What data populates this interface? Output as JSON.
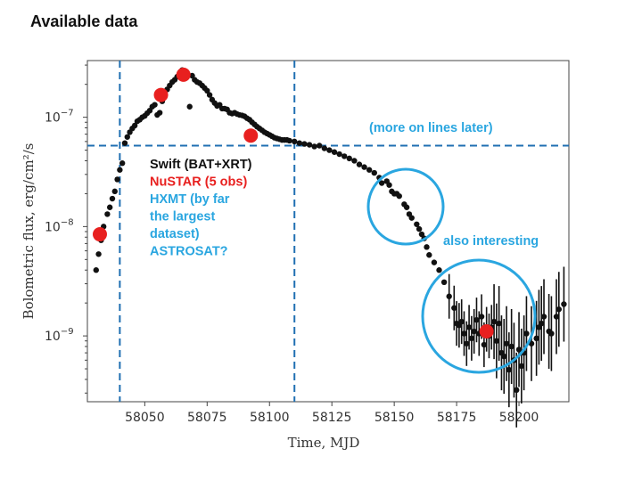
{
  "slide_title": "Available data",
  "chart_data": {
    "type": "scatter",
    "title": "",
    "xlabel": "Time, MJD",
    "ylabel": "Bolometric flux, erg/cm²/s",
    "xlim": [
      58027,
      58220
    ],
    "ylim": [
      2.5e-10,
      3.3e-07
    ],
    "yscale": "log",
    "x_ticks": [
      58050,
      58075,
      58100,
      58125,
      58150,
      58175,
      58200
    ],
    "y_ticks": [
      {
        "value": 1e-07,
        "mantissa": "10",
        "exp": "−7"
      },
      {
        "value": 1e-08,
        "mantissa": "10",
        "exp": "−8"
      },
      {
        "value": 1e-09,
        "mantissa": "10",
        "exp": "−9"
      }
    ],
    "grid": false,
    "colors": {
      "points": "#111111",
      "nustar": "#e8201f",
      "lines": "#1f6fb2",
      "annotation": "#2aa6e0"
    },
    "vertical_lines": [
      58040,
      58110
    ],
    "horizontal_line": 5.5e-08,
    "lightcurve": [
      [
        58030.5,
        4e-09
      ],
      [
        58031.5,
        5.6e-09
      ],
      [
        58032.5,
        7.5e-09
      ],
      [
        58033.5,
        1e-08
      ],
      [
        58035,
        1.3e-08
      ],
      [
        58036,
        1.5e-08
      ],
      [
        58037,
        1.8e-08
      ],
      [
        58038,
        2.1e-08
      ],
      [
        58039,
        2.7e-08
      ],
      [
        58040,
        3.3e-08
      ],
      [
        58041,
        3.8e-08
      ],
      [
        58042,
        5.8e-08
      ],
      [
        58043,
        6.6e-08
      ],
      [
        58044,
        7.3e-08
      ],
      [
        58045,
        7.9e-08
      ],
      [
        58046,
        8.4e-08
      ],
      [
        58047,
        9.2e-08
      ],
      [
        58048,
        9.5e-08
      ],
      [
        58049,
        1e-07
      ],
      [
        58050,
        1.03e-07
      ],
      [
        58051,
        1.09e-07
      ],
      [
        58052,
        1.15e-07
      ],
      [
        58053,
        1.25e-07
      ],
      [
        58054,
        1.3e-07
      ],
      [
        58055,
        1.05e-07
      ],
      [
        58056,
        1.1e-07
      ],
      [
        58057,
        1.4e-07
      ],
      [
        58058,
        1.55e-07
      ],
      [
        58059,
        1.8e-07
      ],
      [
        58060,
        1.95e-07
      ],
      [
        58061,
        2.1e-07
      ],
      [
        58062,
        2.2e-07
      ],
      [
        58063,
        2.35e-07
      ],
      [
        58064,
        2.45e-07
      ],
      [
        58065,
        2.7e-07
      ],
      [
        58066,
        2.6e-07
      ],
      [
        58067,
        2.5e-07
      ],
      [
        58068,
        1.25e-07
      ],
      [
        58069,
        2.4e-07
      ],
      [
        58070,
        2.2e-07
      ],
      [
        58071,
        2.1e-07
      ],
      [
        58072,
        2.05e-07
      ],
      [
        58073,
        1.95e-07
      ],
      [
        58074,
        1.85e-07
      ],
      [
        58075,
        1.75e-07
      ],
      [
        58076,
        1.6e-07
      ],
      [
        58077,
        1.45e-07
      ],
      [
        58078,
        1.35e-07
      ],
      [
        58079,
        1.27e-07
      ],
      [
        58080,
        1.3e-07
      ],
      [
        58081,
        1.2e-07
      ],
      [
        58082,
        1.2e-07
      ],
      [
        58083,
        1.18e-07
      ],
      [
        58084,
        1.1e-07
      ],
      [
        58085,
        1.08e-07
      ],
      [
        58086,
        1.1e-07
      ],
      [
        58087,
        1.07e-07
      ],
      [
        58088,
        1.05e-07
      ],
      [
        58089,
        1.04e-07
      ],
      [
        58090,
        1.02e-07
      ],
      [
        58091,
        9.8e-08
      ],
      [
        58092,
        9.5e-08
      ],
      [
        58093,
        9e-08
      ],
      [
        58094,
        8.6e-08
      ],
      [
        58095,
        8.2e-08
      ],
      [
        58096,
        7.9e-08
      ],
      [
        58097,
        7.6e-08
      ],
      [
        58098,
        7.3e-08
      ],
      [
        58099,
        7.1e-08
      ],
      [
        58100,
        6.9e-08
      ],
      [
        58101,
        6.7e-08
      ],
      [
        58102,
        6.5e-08
      ],
      [
        58103,
        6.4e-08
      ],
      [
        58104,
        6.3e-08
      ],
      [
        58105,
        6.2e-08
      ],
      [
        58106,
        6.2e-08
      ],
      [
        58107,
        6.2e-08
      ],
      [
        58108,
        6.1e-08
      ],
      [
        58110,
        6e-08
      ],
      [
        58112,
        5.8e-08
      ],
      [
        58114,
        5.7e-08
      ],
      [
        58116,
        5.6e-08
      ],
      [
        58118,
        5.4e-08
      ],
      [
        58120,
        5.5e-08
      ],
      [
        58122,
        5.2e-08
      ],
      [
        58124,
        5e-08
      ],
      [
        58126,
        4.8e-08
      ],
      [
        58128,
        4.6e-08
      ],
      [
        58130,
        4.4e-08
      ],
      [
        58132,
        4.2e-08
      ],
      [
        58134,
        4e-08
      ],
      [
        58136,
        3.7e-08
      ],
      [
        58138,
        3.5e-08
      ],
      [
        58140,
        3.3e-08
      ],
      [
        58142,
        3.1e-08
      ],
      [
        58144,
        2.8e-08
      ],
      [
        58145,
        2.5e-08
      ],
      [
        58147,
        2.6e-08
      ],
      [
        58148,
        2.4e-08
      ],
      [
        58149,
        2.1e-08
      ],
      [
        58150,
        2e-08
      ],
      [
        58151,
        2e-08
      ],
      [
        58152,
        1.9e-08
      ],
      [
        58154,
        1.6e-08
      ],
      [
        58155,
        1.5e-08
      ],
      [
        58156,
        1.3e-08
      ],
      [
        58157,
        1.2e-08
      ],
      [
        58159,
        1.05e-08
      ],
      [
        58160,
        9.5e-09
      ],
      [
        58161,
        8.5e-09
      ],
      [
        58162,
        7.8e-09
      ],
      [
        58163,
        6.5e-09
      ],
      [
        58164,
        5.5e-09
      ],
      [
        58166,
        4.7e-09
      ],
      [
        58168,
        4e-09
      ],
      [
        58170,
        3.1e-09
      ],
      [
        58172,
        2.3e-09
      ],
      [
        58174,
        1.8e-09
      ],
      [
        58175,
        1.3e-09
      ],
      [
        58176,
        1.25e-09
      ],
      [
        58177,
        1.35e-09
      ],
      [
        58178,
        1.05e-09
      ],
      [
        58179,
        8.5e-10
      ],
      [
        58180,
        1.2e-09
      ],
      [
        58181,
        9.5e-10
      ],
      [
        58182,
        1.1e-09
      ],
      [
        58183,
        1.4e-09
      ],
      [
        58184,
        1.05e-09
      ],
      [
        58185,
        1.5e-09
      ],
      [
        58186,
        8.3e-10
      ],
      [
        58187,
        1.15e-09
      ],
      [
        58188,
        1e-09
      ],
      [
        58189,
        1.2e-09
      ],
      [
        58190,
        1.35e-09
      ],
      [
        58191,
        9e-10
      ],
      [
        58192,
        1.3e-09
      ],
      [
        58193,
        7e-10
      ],
      [
        58194,
        6.5e-10
      ],
      [
        58195,
        8.5e-10
      ],
      [
        58196,
        4.9e-10
      ],
      [
        58197,
        8e-10
      ],
      [
        58198,
        6e-10
      ],
      [
        58199,
        3.2e-10
      ],
      [
        58200,
        7.5e-10
      ],
      [
        58201,
        5.3e-10
      ],
      [
        58202,
        7e-10
      ],
      [
        58203,
        1.05e-09
      ],
      [
        58205,
        8.5e-10
      ],
      [
        58207,
        9.5e-10
      ],
      [
        58208,
        1.2e-09
      ],
      [
        58209,
        1.3e-09
      ],
      [
        58210,
        1.5e-09
      ],
      [
        58212,
        1.1e-09
      ],
      [
        58213,
        1.05e-09
      ],
      [
        58215,
        1.5e-09
      ],
      [
        58216,
        1.75e-09
      ],
      [
        58218,
        1.95e-09
      ]
    ],
    "nustar": [
      [
        58032,
        8.5e-09
      ],
      [
        58056.5,
        1.6e-07
      ],
      [
        58065.5,
        2.45e-07
      ],
      [
        58092.5,
        6.8e-08
      ],
      [
        58187,
        1.1e-09
      ]
    ],
    "annotations": {
      "lines_note": "(more on lines later)",
      "interesting_note": "also interesting",
      "list": [
        {
          "text": "Swift (BAT+XRT)",
          "role": "swift"
        },
        {
          "text": "NuSTAR (5 obs)",
          "role": "nustar"
        },
        {
          "text": "HXMT (by far",
          "role": "hxmt"
        },
        {
          "text": "the largest",
          "role": "hxmt"
        },
        {
          "text": "dataset)",
          "role": "hxmt"
        },
        {
          "text": "ASTROSAT?",
          "role": "hxmt"
        }
      ]
    }
  }
}
